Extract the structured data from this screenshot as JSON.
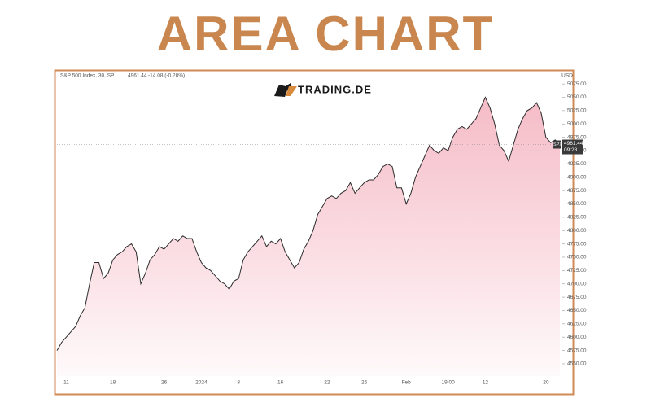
{
  "chart_data": {
    "type": "area",
    "title": "AREA CHART",
    "instrument": "S&P 500 Index, 30, SP",
    "change": "-14.08 (-0.28%)",
    "brand": "TRADING.DE",
    "currency": "USD",
    "price_tag": "SPX",
    "price_time": "09:28",
    "color": "#2b2b2b",
    "fill": "#f5b8c4",
    "categories": [
      null,
      null,
      "11",
      null,
      null,
      null,
      null,
      null,
      null,
      null,
      null,
      null,
      "18",
      null,
      null,
      null,
      null,
      null,
      null,
      null,
      null,
      null,
      null,
      "26",
      null,
      null,
      null,
      null,
      null,
      null,
      null,
      "2024",
      null,
      null,
      null,
      null,
      null,
      null,
      null,
      "8",
      null,
      null,
      null,
      null,
      null,
      null,
      null,
      null,
      "16",
      null,
      null,
      null,
      null,
      null,
      null,
      null,
      null,
      null,
      "22",
      null,
      null,
      null,
      null,
      null,
      null,
      null,
      "26",
      null,
      null,
      null,
      null,
      null,
      null,
      null,
      null,
      "Feb",
      null,
      null,
      null,
      null,
      null,
      null,
      null,
      null,
      "19:00",
      null,
      null,
      null,
      null,
      null,
      null,
      null,
      "12",
      null,
      null,
      null,
      null,
      null,
      null,
      null,
      null,
      null,
      null,
      null,
      null,
      "20",
      null,
      null,
      null
    ],
    "values": [
      4575,
      4590,
      4600,
      4610,
      4620,
      4640,
      4655,
      4700,
      4740,
      4740,
      4710,
      4720,
      4745,
      4755,
      4760,
      4770,
      4775,
      4760,
      4700,
      4720,
      4745,
      4755,
      4770,
      4765,
      4775,
      4785,
      4780,
      4790,
      4785,
      4785,
      4760,
      4740,
      4730,
      4725,
      4715,
      4705,
      4700,
      4690,
      4705,
      4710,
      4745,
      4760,
      4770,
      4780,
      4790,
      4770,
      4780,
      4775,
      4785,
      4760,
      4745,
      4730,
      4740,
      4765,
      4780,
      4800,
      4830,
      4845,
      4860,
      4865,
      4860,
      4870,
      4875,
      4890,
      4870,
      4880,
      4890,
      4895,
      4895,
      4905,
      4920,
      4925,
      4920,
      4880,
      4880,
      4850,
      4870,
      4900,
      4920,
      4940,
      4960,
      4950,
      4945,
      4955,
      4950,
      4975,
      4990,
      4995,
      4990,
      5000,
      5010,
      5030,
      5050,
      5030,
      5000,
      4960,
      4950,
      4930,
      4960,
      4990,
      5010,
      5025,
      5030,
      5040,
      5020,
      4975,
      4965,
      4970,
      4961.44
    ],
    "ylim": [
      4527,
      5092
    ],
    "yticks": [
      {
        "value": 4550,
        "label": "4550.00"
      },
      {
        "value": 4575,
        "label": "4575.00"
      },
      {
        "value": 4600,
        "label": "4600.00"
      },
      {
        "value": 4625,
        "label": "4625.00"
      },
      {
        "value": 4650,
        "label": "4650.00"
      },
      {
        "value": 4675,
        "label": "4675.00"
      },
      {
        "value": 4700,
        "label": "4700.00"
      },
      {
        "value": 4725,
        "label": "4725.00"
      },
      {
        "value": 4750,
        "label": "4750.00"
      },
      {
        "value": 4775,
        "label": "4775.00"
      },
      {
        "value": 4800,
        "label": "4800.00"
      },
      {
        "value": 4825,
        "label": "4825.00"
      },
      {
        "value": 4850,
        "label": "4850.00"
      },
      {
        "value": 4875,
        "label": "4875.00"
      },
      {
        "value": 4900,
        "label": "4900.00"
      },
      {
        "value": 4925,
        "label": "4925.00"
      },
      {
        "value": 4950,
        "label": "4950.00"
      },
      {
        "value": 4975,
        "label": "4975.00"
      },
      {
        "value": 5000,
        "label": "5000.00"
      },
      {
        "value": 5025,
        "label": "5025.00"
      },
      {
        "value": 5050,
        "label": "5050.00"
      },
      {
        "value": 5075,
        "label": "5075.00"
      }
    ]
  }
}
